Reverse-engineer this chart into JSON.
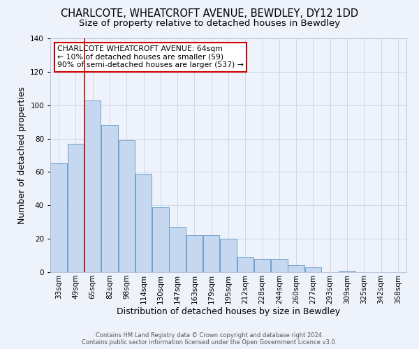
{
  "title": "CHARLCOTE, WHEATCROFT AVENUE, BEWDLEY, DY12 1DD",
  "subtitle": "Size of property relative to detached houses in Bewdley",
  "xlabel": "Distribution of detached houses by size in Bewdley",
  "ylabel": "Number of detached properties",
  "bar_labels": [
    "33sqm",
    "49sqm",
    "65sqm",
    "82sqm",
    "98sqm",
    "114sqm",
    "130sqm",
    "147sqm",
    "163sqm",
    "179sqm",
    "195sqm",
    "212sqm",
    "228sqm",
    "244sqm",
    "260sqm",
    "277sqm",
    "293sqm",
    "309sqm",
    "325sqm",
    "342sqm",
    "358sqm"
  ],
  "bar_values": [
    65,
    77,
    103,
    88,
    79,
    59,
    39,
    27,
    22,
    22,
    20,
    9,
    8,
    8,
    4,
    3,
    0,
    1,
    0,
    0,
    0
  ],
  "bar_color": "#c5d8f0",
  "bar_edge_color": "#6da0cc",
  "ylim": [
    0,
    140
  ],
  "yticks": [
    0,
    20,
    40,
    60,
    80,
    100,
    120,
    140
  ],
  "vline_color": "#cc0000",
  "annotation_box_text": "CHARLCOTE WHEATCROFT AVENUE: 64sqm\n← 10% of detached houses are smaller (59)\n90% of semi-detached houses are larger (537) →",
  "footer_line1": "Contains HM Land Registry data © Crown copyright and database right 2024.",
  "footer_line2": "Contains public sector information licensed under the Open Government Licence v3.0.",
  "background_color": "#eef2fb",
  "plot_bg_color": "#eef2fb",
  "title_fontsize": 10.5,
  "subtitle_fontsize": 9.5,
  "axis_label_fontsize": 9,
  "tick_fontsize": 7.5,
  "footer_fontsize": 6
}
